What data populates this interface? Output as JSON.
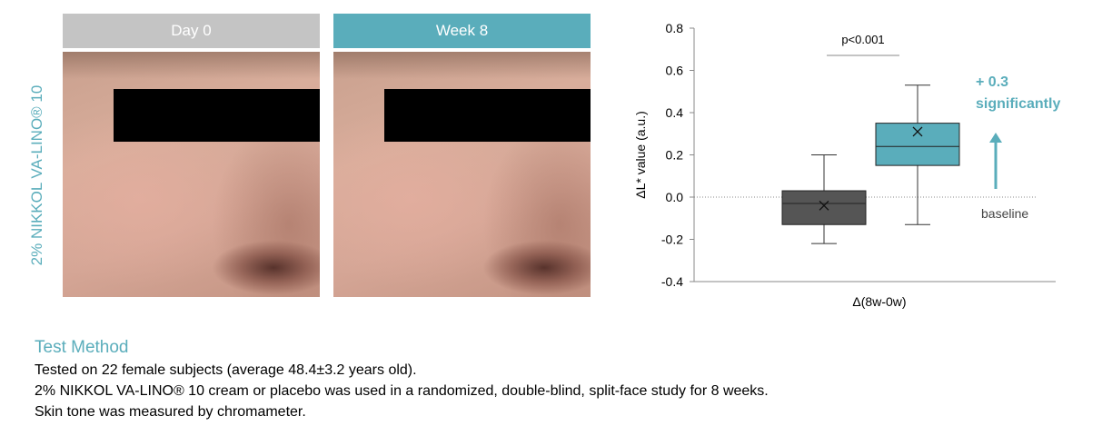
{
  "side_label": "2% NIKKOL VA-LINO® 10",
  "photos": [
    {
      "label": "Day 0",
      "header_color": "#c4c4c4"
    },
    {
      "label": "Week 8",
      "header_color": "#5aadbb"
    }
  ],
  "chart_data": {
    "type": "box",
    "ylabel": "ΔL* value (a.u.)",
    "xlabel": "Δ(8w-0w)",
    "ylim": [
      -0.4,
      0.8
    ],
    "yticks": [
      "0.8",
      "0.6",
      "0.4",
      "0.2",
      "0.0",
      "-0.2",
      "-0.4"
    ],
    "ytick_values": [
      0.8,
      0.6,
      0.4,
      0.2,
      0.0,
      -0.2,
      -0.4
    ],
    "grid": false,
    "series": [
      {
        "color": "#555555",
        "min": -0.22,
        "q1": -0.13,
        "median": -0.03,
        "q3": 0.03,
        "max": 0.2,
        "mean": -0.04
      },
      {
        "color": "#5aadbb",
        "min": -0.13,
        "q1": 0.15,
        "median": 0.24,
        "q3": 0.35,
        "max": 0.53,
        "mean": 0.31
      }
    ],
    "significance": "p<0.001",
    "annotation_line1": "+ 0.3",
    "annotation_line2": "significantly",
    "baseline_label": "baseline",
    "accent_color": "#5aadbb"
  },
  "method": {
    "title": "Test Method",
    "lines": [
      "Tested on 22 female subjects (average 48.4±3.2 years old).",
      "2% NIKKOL VA-LINO® 10 cream or placebo was used in a randomized, double-blind, split-face study for 8 weeks.",
      "Skin tone was measured by chromameter."
    ]
  }
}
